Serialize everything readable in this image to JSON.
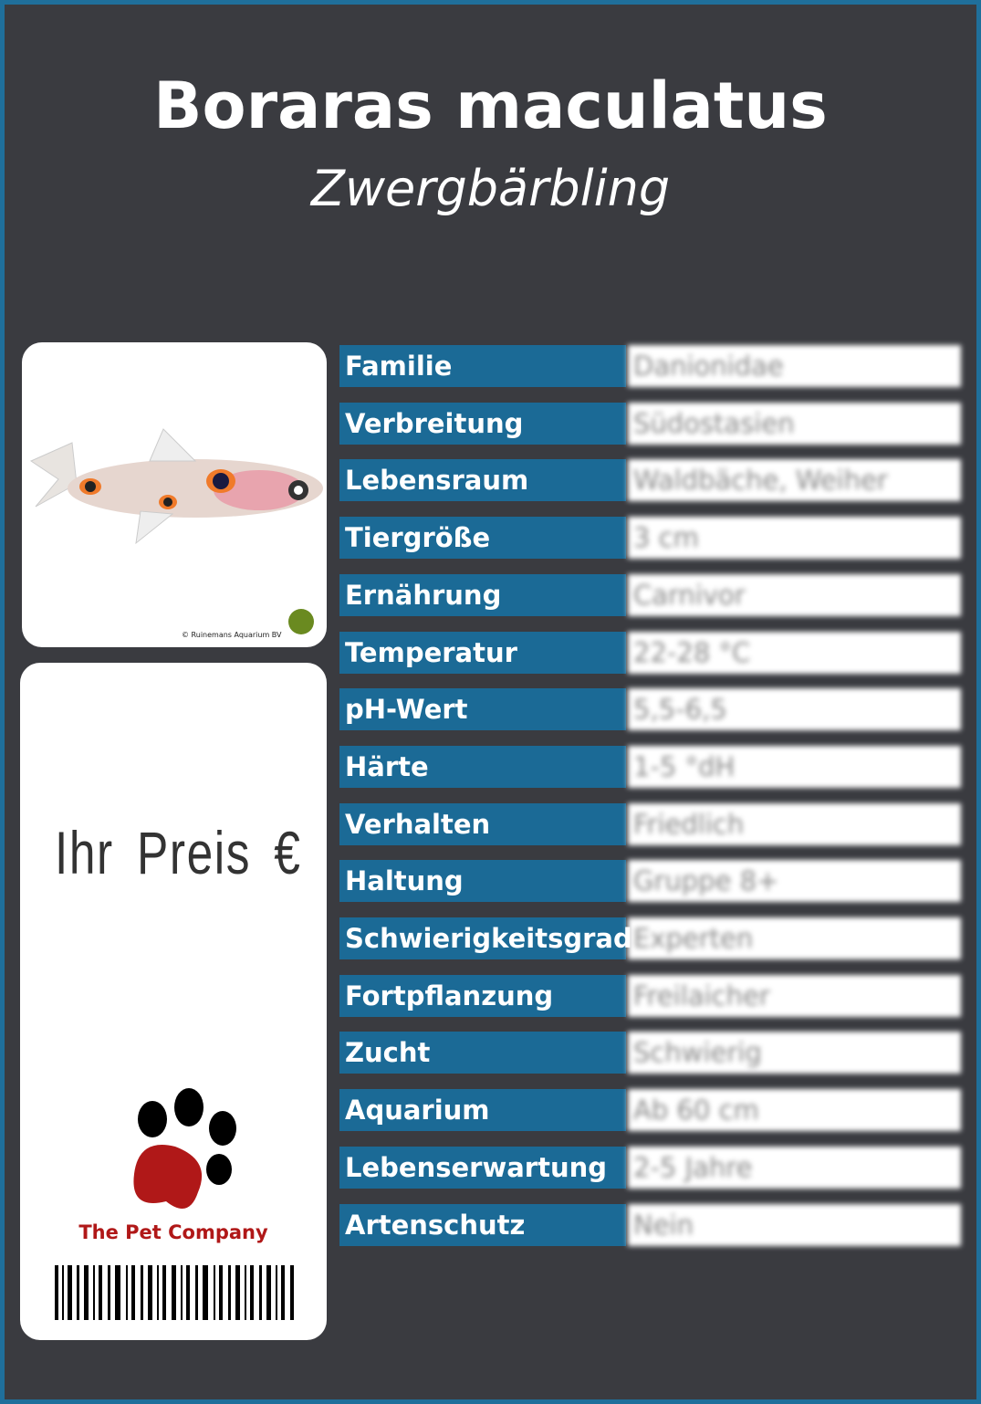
{
  "header": {
    "title": "Boraras maculatus",
    "subtitle": "Zwergbärbling"
  },
  "image": {
    "credit": "© Ruinemans Aquarium BV"
  },
  "price": {
    "label": "Ihr Preis €"
  },
  "brand": {
    "name": "The Pet Company"
  },
  "table": {
    "rows": [
      [
        "Familie",
        "Danionidae"
      ],
      [
        "Verbreitung",
        "Südostasien"
      ],
      [
        "Lebensraum",
        "Waldbäche, Weiher"
      ],
      [
        "Tiergröße",
        "3 cm"
      ],
      [
        "Ernährung",
        "Carnivor"
      ],
      [
        "Temperatur",
        "22-28 °C"
      ],
      [
        "pH-Wert",
        "5,5-6,5"
      ],
      [
        "Härte",
        "1-5 °dH"
      ],
      [
        "Verhalten",
        "Friedlich"
      ],
      [
        "Haltung",
        "Gruppe 8+"
      ],
      [
        "Schwierigkeitsgrad",
        "Experten"
      ],
      [
        "Fortpflanzung",
        "Freilaicher"
      ],
      [
        "Zucht",
        "Schwierig"
      ],
      [
        "Aquarium",
        "Ab 60 cm"
      ],
      [
        "Lebenserwartung",
        "2-5 Jahre"
      ],
      [
        "Artenschutz",
        "Nein"
      ]
    ]
  }
}
